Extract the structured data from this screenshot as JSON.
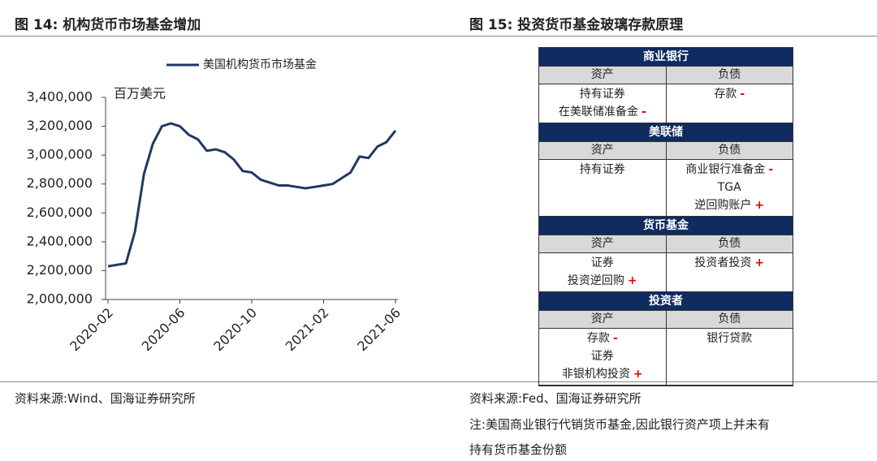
{
  "left_header": "图 14:  机构货币市场基金增加",
  "right_header": "图 15:  投资货币基金玻璃存款原理",
  "chart_data": {
    "type": "line",
    "y_unit": "百万美元",
    "categories": [
      "2020-02",
      null,
      null,
      null,
      null,
      null,
      null,
      null,
      "2020-06",
      null,
      null,
      null,
      null,
      null,
      null,
      null,
      "2020-10",
      null,
      null,
      null,
      null,
      null,
      null,
      null,
      "2021-02",
      null,
      null,
      null,
      null,
      null,
      null,
      null,
      "2021-06"
    ],
    "series": [
      {
        "name": "美国机构货币市场基金",
        "color": "#1f3864",
        "values": [
          2230000,
          2240000,
          2250000,
          2470000,
          2870000,
          3080000,
          3200000,
          3220000,
          3200000,
          3140000,
          3110000,
          3030000,
          3040000,
          3020000,
          2970000,
          2890000,
          2880000,
          2830000,
          2810000,
          2790000,
          2790000,
          2780000,
          2770000,
          2780000,
          2790000,
          2800000,
          2840000,
          2880000,
          2990000,
          2980000,
          3060000,
          3090000,
          3170000
        ]
      }
    ],
    "ylim": [
      2000000,
      3400000
    ],
    "yticks": [
      {
        "value": 2000000,
        "label": "2,000,000"
      },
      {
        "value": 2200000,
        "label": "2,200,000"
      },
      {
        "value": 2400000,
        "label": "2,400,000"
      },
      {
        "value": 2600000,
        "label": "2,600,000"
      },
      {
        "value": 2800000,
        "label": "2,800,000"
      },
      {
        "value": 3000000,
        "label": "3,000,000"
      },
      {
        "value": 3200000,
        "label": "3,200,000"
      },
      {
        "value": 3400000,
        "label": "3,400,000"
      }
    ],
    "legend": "top"
  },
  "table": {
    "sections": [
      {
        "title": "商业银行",
        "asset_label": "资产",
        "liability_label": "负债",
        "assets": [
          {
            "text": "持有证券"
          },
          {
            "text": "在美联储准备金",
            "sign": "-"
          }
        ],
        "liabilities": [
          {
            "text": "存款",
            "sign": "-"
          }
        ]
      },
      {
        "title": "美联储",
        "asset_label": "资产",
        "liability_label": "负债",
        "assets": [
          {
            "text": "持有证券"
          }
        ],
        "liabilities": [
          {
            "text": "商业银行准备金",
            "sign": "-"
          },
          {
            "text": "TGA"
          },
          {
            "text": "逆回购账户",
            "sign": "+"
          }
        ]
      },
      {
        "title": "货币基金",
        "asset_label": "资产",
        "liability_label": "负债",
        "assets": [
          {
            "text": "证券"
          },
          {
            "text": "投资逆回购",
            "sign": "+"
          }
        ],
        "liabilities": [
          {
            "text": "投资者投资",
            "sign": "+"
          }
        ]
      },
      {
        "title": "投资者",
        "asset_label": "资产",
        "liability_label": "负债",
        "assets": [
          {
            "text": "存款",
            "sign": "-"
          },
          {
            "text": "证券"
          },
          {
            "text": "非银机构投资",
            "sign": "+"
          }
        ],
        "liabilities": [
          {
            "text": "银行贷款"
          }
        ]
      }
    ]
  },
  "left_source": "资料来源:Wind、国海证券研究所",
  "right_source": "资料来源:Fed、国海证券研究所",
  "note_lines": [
    "注:美国商业银行代销货币基金,因此银行资产项上并未有",
    "持有货币基金份额"
  ]
}
